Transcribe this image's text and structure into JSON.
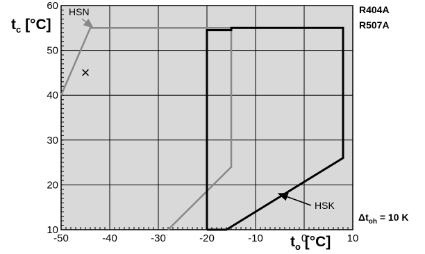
{
  "chart_data": {
    "type": "line",
    "xlabel": {
      "main": "t",
      "sub": "o",
      "unit": " [°C]"
    },
    "ylabel": {
      "main": "t",
      "sub": "c",
      "unit": " [°C]"
    },
    "xlim": [
      -50,
      10
    ],
    "ylim": [
      10,
      60
    ],
    "x_ticks": [
      -50,
      -40,
      -30,
      -20,
      -10,
      0,
      10
    ],
    "y_ticks": [
      10,
      20,
      30,
      40,
      50,
      60
    ],
    "grid": true,
    "series": [
      {
        "name": "HSN",
        "color": "#888888",
        "points": [
          [
            -28,
            10
          ],
          [
            -15,
            24
          ],
          [
            -15,
            55
          ],
          [
            -44,
            55
          ],
          [
            -50,
            40
          ]
        ]
      },
      {
        "name": "HSK",
        "color": "#000000",
        "points": [
          [
            -20,
            10
          ],
          [
            -16,
            10
          ],
          [
            8,
            26
          ],
          [
            8,
            55
          ],
          [
            -15,
            55
          ],
          [
            -15,
            54.5
          ],
          [
            -20,
            54.5
          ],
          [
            -20,
            10
          ]
        ]
      }
    ],
    "marker": {
      "x": -45,
      "y": 45,
      "symbol": "×"
    },
    "annotations": [
      {
        "text": "HSN",
        "arrow_to": [
          -44.5,
          55
        ]
      },
      {
        "text": "HSK",
        "arrow_to": [
          -7,
          18
        ]
      }
    ],
    "refrigerants": [
      "R404A",
      "R507A"
    ],
    "condition": {
      "prefix": "Δt",
      "sub": "oh",
      "suffix": " = 10 K"
    }
  }
}
